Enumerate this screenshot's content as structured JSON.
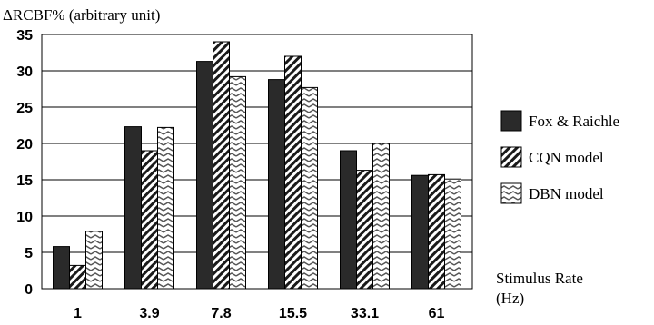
{
  "chart_data": {
    "type": "bar",
    "ylabel": "ΔRCBF% (arbitrary unit)",
    "xlabel_line1": "Stimulus Rate",
    "xlabel_line2": "(Hz)",
    "categories": [
      "1",
      "3.9",
      "7.8",
      "15.5",
      "33.1",
      "61"
    ],
    "ylim": [
      0,
      35
    ],
    "yticks": [
      "0",
      "5",
      "10",
      "15",
      "20",
      "25",
      "30",
      "35"
    ],
    "grid": true,
    "legend_position": "right",
    "series": [
      {
        "name": "Fox & Raichle",
        "values": [
          5.8,
          22.3,
          31.3,
          28.8,
          19.0,
          15.6
        ],
        "pattern": "solid",
        "color": "#2a2a2a"
      },
      {
        "name": "CQN model",
        "values": [
          3.2,
          19.0,
          34.0,
          32.0,
          16.3,
          15.7
        ],
        "pattern": "diagonal",
        "color": "#1a1a1a"
      },
      {
        "name": "DBN model",
        "values": [
          7.9,
          22.2,
          29.2,
          27.7,
          20.0,
          15.1
        ],
        "pattern": "wave",
        "color": "#555555"
      }
    ]
  }
}
